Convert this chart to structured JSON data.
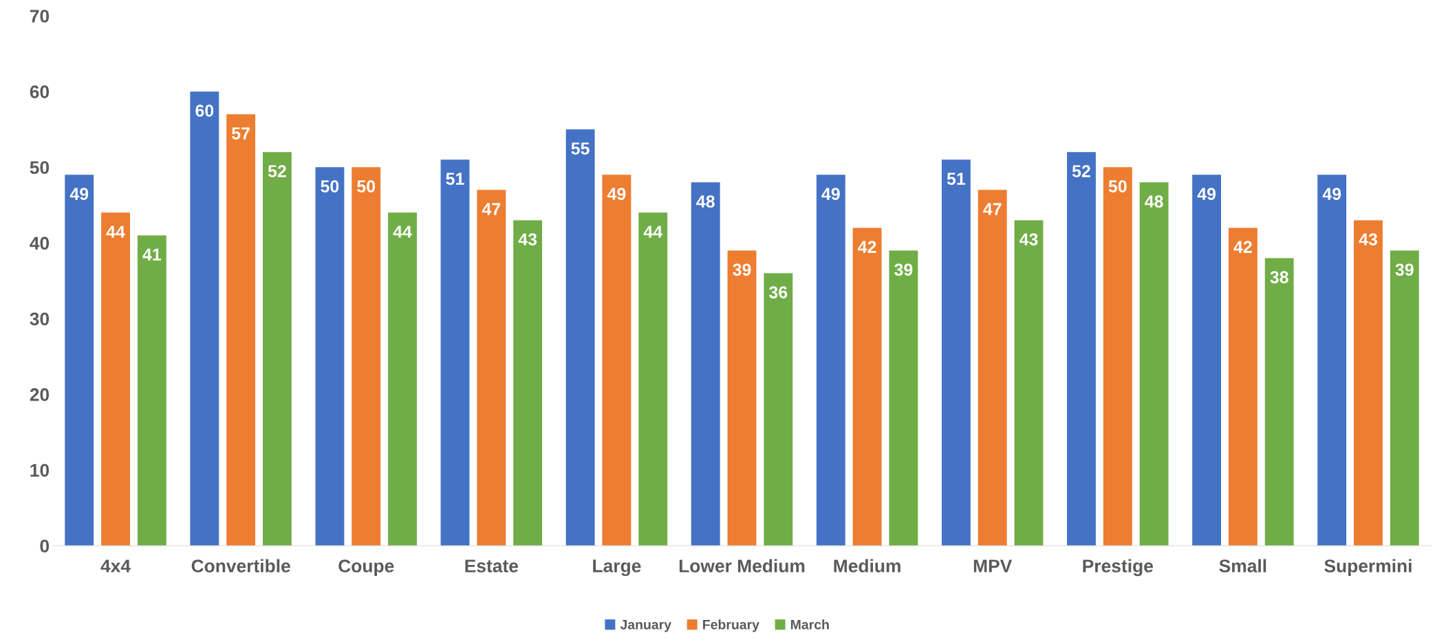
{
  "chart_data": {
    "type": "bar",
    "categories": [
      "4x4",
      "Convertible",
      "Coupe",
      "Estate",
      "Large",
      "Lower Medium",
      "Medium",
      "MPV",
      "Prestige",
      "Small",
      "Supermini"
    ],
    "series": [
      {
        "name": "January",
        "color": "#4472c4",
        "values": [
          49,
          60,
          50,
          51,
          55,
          48,
          49,
          51,
          52,
          49,
          49
        ]
      },
      {
        "name": "February",
        "color": "#ed7d31",
        "values": [
          44,
          57,
          50,
          47,
          49,
          39,
          42,
          47,
          50,
          42,
          43
        ]
      },
      {
        "name": "March",
        "color": "#70ad47",
        "values": [
          41,
          52,
          44,
          43,
          44,
          36,
          39,
          43,
          48,
          38,
          39
        ]
      }
    ],
    "ylim": [
      0,
      70
    ],
    "yticks": [
      0,
      10,
      20,
      30,
      40,
      50,
      60,
      70
    ],
    "data_labels": true,
    "grid": false,
    "legend": "bottom"
  }
}
